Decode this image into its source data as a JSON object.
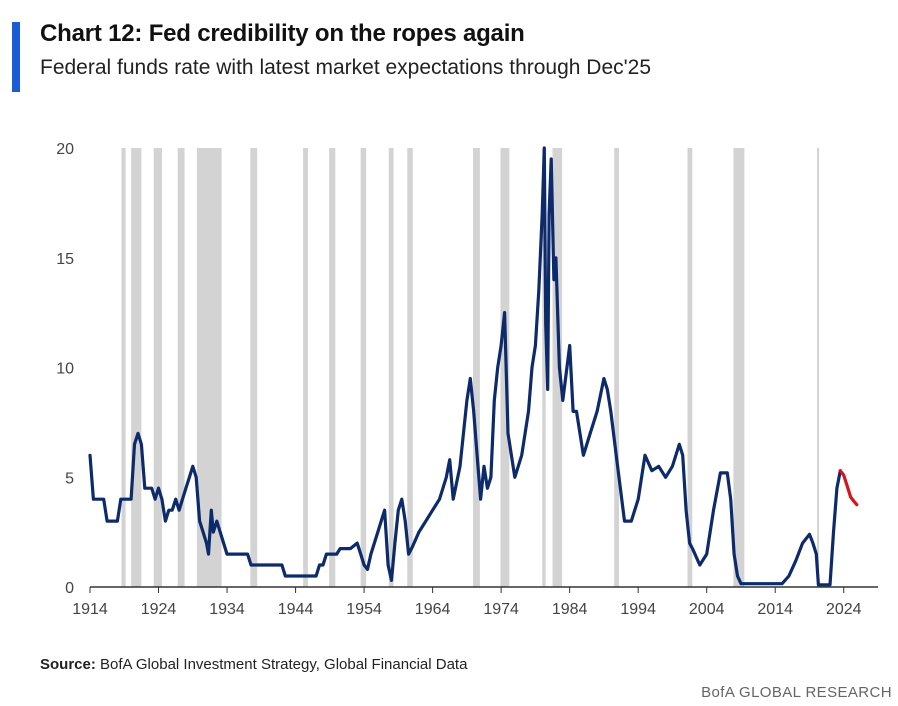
{
  "header": {
    "title": "Chart 12: Fed credibility on the ropes again",
    "subtitle": "Federal funds rate with latest market expectations through Dec'25"
  },
  "footer": {
    "source_label": "Source:",
    "source_text": "BofA Global Investment Strategy, Global Financial Data",
    "brand": "BofA GLOBAL RESEARCH"
  },
  "colors": {
    "accent": "#1a5bd6",
    "history_line": "#0d2a6b",
    "expectations_line": "#d4151b",
    "recession_band": "#d3d3d3"
  },
  "chart_data": {
    "type": "line",
    "title": "Chart 12: Fed credibility on the ropes again",
    "subtitle": "Federal funds rate with latest market expectations through Dec'25",
    "xlabel": "",
    "ylabel": "",
    "xlim": [
      1914,
      2029
    ],
    "ylim": [
      0,
      20
    ],
    "x_ticks": [
      1914,
      1924,
      1934,
      1944,
      1954,
      1964,
      1974,
      1984,
      1994,
      2004,
      2014,
      2024
    ],
    "y_ticks": [
      0,
      5,
      10,
      15,
      20
    ],
    "grid": false,
    "shaded_periods": [
      [
        1918.6,
        1919.2
      ],
      [
        1920.0,
        1921.5
      ],
      [
        1923.3,
        1924.5
      ],
      [
        1926.8,
        1927.8
      ],
      [
        1929.6,
        1933.2
      ],
      [
        1937.4,
        1938.4
      ],
      [
        1945.1,
        1945.8
      ],
      [
        1948.9,
        1949.8
      ],
      [
        1953.5,
        1954.3
      ],
      [
        1957.6,
        1958.3
      ],
      [
        1960.3,
        1961.1
      ],
      [
        1969.9,
        1970.9
      ],
      [
        1973.9,
        1975.2
      ],
      [
        1980.0,
        1980.5
      ],
      [
        1981.5,
        1982.9
      ],
      [
        1990.5,
        1991.2
      ],
      [
        2001.2,
        2001.9
      ],
      [
        2007.9,
        2009.5
      ],
      [
        2020.1,
        2020.4
      ]
    ],
    "series": [
      {
        "style": "history",
        "points": [
          [
            1914,
            6.0
          ],
          [
            1914.5,
            4.0
          ],
          [
            1916,
            4.0
          ],
          [
            1916.5,
            3.0
          ],
          [
            1918,
            3.0
          ],
          [
            1918.5,
            4.0
          ],
          [
            1920,
            4.0
          ],
          [
            1920.5,
            6.5
          ],
          [
            1921,
            7.0
          ],
          [
            1921.5,
            6.5
          ],
          [
            1922,
            4.5
          ],
          [
            1923,
            4.5
          ],
          [
            1923.5,
            4.0
          ],
          [
            1924,
            4.5
          ],
          [
            1924.5,
            4.0
          ],
          [
            1925,
            3.0
          ],
          [
            1925.5,
            3.5
          ],
          [
            1926,
            3.5
          ],
          [
            1926.5,
            4.0
          ],
          [
            1927,
            3.5
          ],
          [
            1927.5,
            4.0
          ],
          [
            1928,
            4.5
          ],
          [
            1928.5,
            5.0
          ],
          [
            1929,
            5.5
          ],
          [
            1929.5,
            5.0
          ],
          [
            1930,
            3.0
          ],
          [
            1930.5,
            2.5
          ],
          [
            1931,
            2.0
          ],
          [
            1931.3,
            1.5
          ],
          [
            1931.7,
            3.5
          ],
          [
            1932,
            2.5
          ],
          [
            1932.5,
            3.0
          ],
          [
            1933,
            2.5
          ],
          [
            1933.5,
            2.0
          ],
          [
            1934,
            1.5
          ],
          [
            1937,
            1.5
          ],
          [
            1937.5,
            1.0
          ],
          [
            1942,
            1.0
          ],
          [
            1942.5,
            0.5
          ],
          [
            1947,
            0.5
          ],
          [
            1947.5,
            1.0
          ],
          [
            1948,
            1.0
          ],
          [
            1948.5,
            1.5
          ],
          [
            1950,
            1.5
          ],
          [
            1950.5,
            1.75
          ],
          [
            1952,
            1.75
          ],
          [
            1953,
            2.0
          ],
          [
            1953.5,
            1.5
          ],
          [
            1954,
            1.0
          ],
          [
            1954.5,
            0.8
          ],
          [
            1955,
            1.5
          ],
          [
            1956,
            2.5
          ],
          [
            1956.5,
            3.0
          ],
          [
            1957,
            3.5
          ],
          [
            1957.5,
            1.0
          ],
          [
            1958,
            0.3
          ],
          [
            1958.5,
            2.0
          ],
          [
            1959,
            3.5
          ],
          [
            1959.5,
            4.0
          ],
          [
            1960,
            3.0
          ],
          [
            1960.5,
            1.5
          ],
          [
            1961,
            1.8
          ],
          [
            1962,
            2.5
          ],
          [
            1963,
            3.0
          ],
          [
            1964,
            3.5
          ],
          [
            1965,
            4.0
          ],
          [
            1966,
            5.0
          ],
          [
            1966.5,
            5.8
          ],
          [
            1967,
            4.0
          ],
          [
            1968,
            5.5
          ],
          [
            1969,
            8.5
          ],
          [
            1969.5,
            9.5
          ],
          [
            1970,
            8.0
          ],
          [
            1970.5,
            6.0
          ],
          [
            1971,
            4.0
          ],
          [
            1971.5,
            5.5
          ],
          [
            1972,
            4.5
          ],
          [
            1972.5,
            5.0
          ],
          [
            1973,
            8.5
          ],
          [
            1973.5,
            10.0
          ],
          [
            1974,
            11.0
          ],
          [
            1974.5,
            12.5
          ],
          [
            1975,
            7.0
          ],
          [
            1975.5,
            6.0
          ],
          [
            1976,
            5.0
          ],
          [
            1977,
            6.0
          ],
          [
            1978,
            8.0
          ],
          [
            1978.5,
            10.0
          ],
          [
            1979,
            11.0
          ],
          [
            1979.5,
            13.5
          ],
          [
            1980,
            17.0
          ],
          [
            1980.3,
            20.0
          ],
          [
            1980.5,
            12.0
          ],
          [
            1980.8,
            9.0
          ],
          [
            1981,
            17.0
          ],
          [
            1981.3,
            19.5
          ],
          [
            1981.7,
            14.0
          ],
          [
            1982,
            15.0
          ],
          [
            1982.5,
            10.0
          ],
          [
            1983,
            8.5
          ],
          [
            1984,
            11.0
          ],
          [
            1984.5,
            8.0
          ],
          [
            1985,
            8.0
          ],
          [
            1986,
            6.0
          ],
          [
            1987,
            7.0
          ],
          [
            1988,
            8.0
          ],
          [
            1989,
            9.5
          ],
          [
            1989.5,
            9.0
          ],
          [
            1990,
            8.0
          ],
          [
            1991,
            5.5
          ],
          [
            1992,
            3.0
          ],
          [
            1993,
            3.0
          ],
          [
            1994,
            4.0
          ],
          [
            1994.5,
            5.0
          ],
          [
            1995,
            6.0
          ],
          [
            1996,
            5.3
          ],
          [
            1997,
            5.5
          ],
          [
            1998,
            5.0
          ],
          [
            1999,
            5.5
          ],
          [
            2000,
            6.5
          ],
          [
            2000.5,
            6.0
          ],
          [
            2001,
            3.5
          ],
          [
            2001.5,
            2.0
          ],
          [
            2002,
            1.7
          ],
          [
            2003,
            1.0
          ],
          [
            2004,
            1.5
          ],
          [
            2005,
            3.5
          ],
          [
            2006,
            5.2
          ],
          [
            2007,
            5.2
          ],
          [
            2007.5,
            4.0
          ],
          [
            2008,
            1.5
          ],
          [
            2008.5,
            0.5
          ],
          [
            2009,
            0.15
          ],
          [
            2015,
            0.15
          ],
          [
            2016,
            0.5
          ],
          [
            2017,
            1.2
          ],
          [
            2018,
            2.0
          ],
          [
            2019,
            2.4
          ],
          [
            2019.5,
            2.0
          ],
          [
            2020,
            1.5
          ],
          [
            2020.3,
            0.1
          ],
          [
            2022,
            0.1
          ],
          [
            2022.5,
            2.5
          ],
          [
            2023,
            4.5
          ],
          [
            2023.5,
            5.3
          ]
        ]
      },
      {
        "style": "expectations",
        "points": [
          [
            2023.5,
            5.3
          ],
          [
            2024,
            5.1
          ],
          [
            2024.5,
            4.6
          ],
          [
            2025,
            4.1
          ],
          [
            2025.5,
            3.9
          ],
          [
            2025.9,
            3.75
          ]
        ]
      }
    ]
  }
}
